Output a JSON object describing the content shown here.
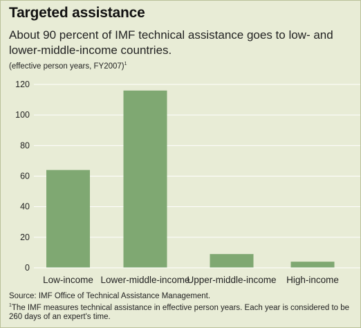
{
  "header": {
    "title": "Targeted assistance",
    "subtitle": "About 90 percent of IMF technical assistance goes to low- and lower-middle-income countries.",
    "unit_label": "(effective person years, FY2007)",
    "unit_footnote_mark": "1"
  },
  "chart_data": {
    "type": "bar",
    "categories": [
      "Low-income",
      "Lower-middle-income",
      "Upper-middle-income",
      "High-income"
    ],
    "values": [
      64,
      116,
      9,
      4
    ],
    "ylim": [
      0,
      120
    ],
    "yticks": [
      "0",
      "20",
      "40",
      "60",
      "80",
      "100",
      "120"
    ],
    "grid": true,
    "bar_color": "#7fa872"
  },
  "footer": {
    "source": "Source: IMF Office of Technical Assistance Management.",
    "note_mark": "1",
    "note": "The IMF measures technical assistance in effective person years. Each year is considered to be 260 days of an expert's time."
  }
}
